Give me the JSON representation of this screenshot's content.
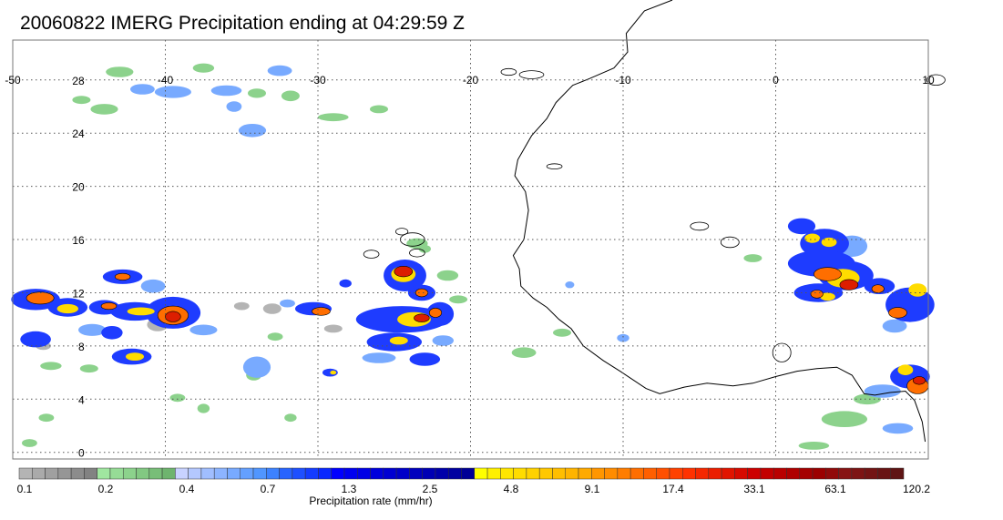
{
  "title": "20060822 IMERG Precipitation ending at 04:29:59 Z",
  "map": {
    "lon_range": [
      -50,
      10
    ],
    "lat_range": [
      -0.5,
      31
    ],
    "lon_ticks": [
      "-50",
      "-40",
      "-30",
      "-20",
      "-10",
      "0",
      "10"
    ],
    "lat_ticks": [
      "0",
      "4",
      "8",
      "12",
      "16",
      "20",
      "24",
      "28"
    ],
    "grid": "dotted",
    "coastline_color": "#000000"
  },
  "colorbar": {
    "title": "Precipitation rate (mm/hr)",
    "tick_labels": [
      "0.1",
      "0.2",
      "0.4",
      "0.7",
      "1.3",
      "2.5",
      "4.8",
      "9.1",
      "17.4",
      "33.1",
      "63.1",
      "120.2"
    ],
    "colors": [
      "#b4b4b4",
      "#aaaaaa",
      "#a0a0a0",
      "#969696",
      "#8c8c8c",
      "#828282",
      "#a0e6a0",
      "#96dc96",
      "#8cd28c",
      "#82c882",
      "#78be78",
      "#6eb46e",
      "#c8d2ff",
      "#b4c8ff",
      "#a0beff",
      "#8cb4ff",
      "#78aaff",
      "#64a0ff",
      "#5096ff",
      "#3c82ff",
      "#2864ff",
      "#1e50ff",
      "#143cff",
      "#0a28ff",
      "#0000ff",
      "#0000f0",
      "#0000e6",
      "#0000dc",
      "#0000d2",
      "#0000c8",
      "#0000be",
      "#0000b4",
      "#0000aa",
      "#0000a0",
      "#000096",
      "#ffff00",
      "#fff000",
      "#ffe600",
      "#ffdc00",
      "#ffd200",
      "#ffc800",
      "#ffbe00",
      "#ffb400",
      "#ffaa00",
      "#ff9600",
      "#ff8c00",
      "#ff7d00",
      "#ff6e00",
      "#ff5f00",
      "#ff5000",
      "#ff4100",
      "#ff3200",
      "#f52800",
      "#eb1e00",
      "#e11400",
      "#d70a00",
      "#cd0000",
      "#c30000",
      "#b90000",
      "#af0000",
      "#a50000",
      "#9b0000",
      "#910a0a",
      "#871414",
      "#7d1414",
      "#731414",
      "#691414",
      "#5f1414"
    ]
  },
  "precip": {
    "light": "#b4b4b4",
    "weak": "#8cd28c",
    "moderate": "#78aaff",
    "strong": "#1e3cff",
    "heavy": "#ffdc00",
    "intense": "#ff6e00",
    "extreme": "#dc1e00"
  }
}
